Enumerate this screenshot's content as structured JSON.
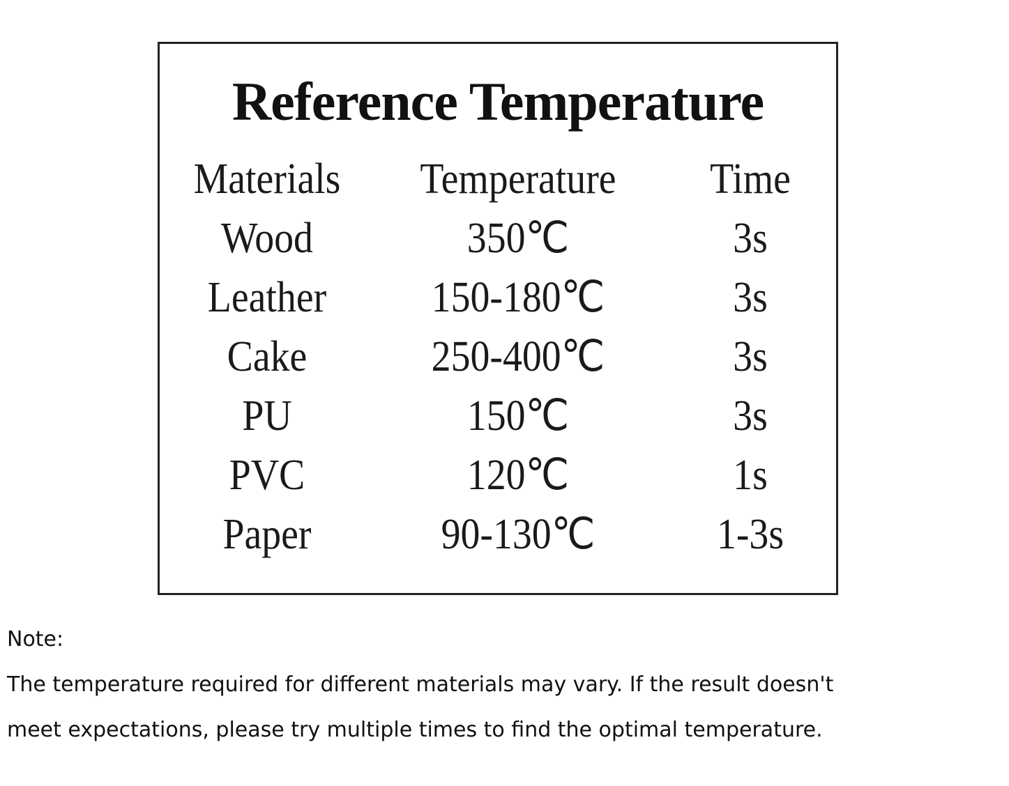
{
  "title": "Reference Temperature",
  "table": {
    "header": [
      "Materials",
      "Temperature",
      "Time"
    ],
    "rows": [
      [
        "Wood",
        "350℃",
        "3s"
      ],
      [
        "Leather",
        "150-180℃",
        "3s"
      ],
      [
        "Cake",
        "250-400℃",
        "3s"
      ],
      [
        "PU",
        "150℃",
        "3s"
      ],
      [
        "PVC",
        "120℃",
        "1s"
      ],
      [
        "Paper",
        "90-130℃",
        "1-3s"
      ]
    ]
  },
  "note": {
    "label": "Note:",
    "lines": [
      "The temperature required for different materials may vary. If the result doesn't",
      "meet expectations, please try multiple times to find the optimal temperature."
    ]
  }
}
